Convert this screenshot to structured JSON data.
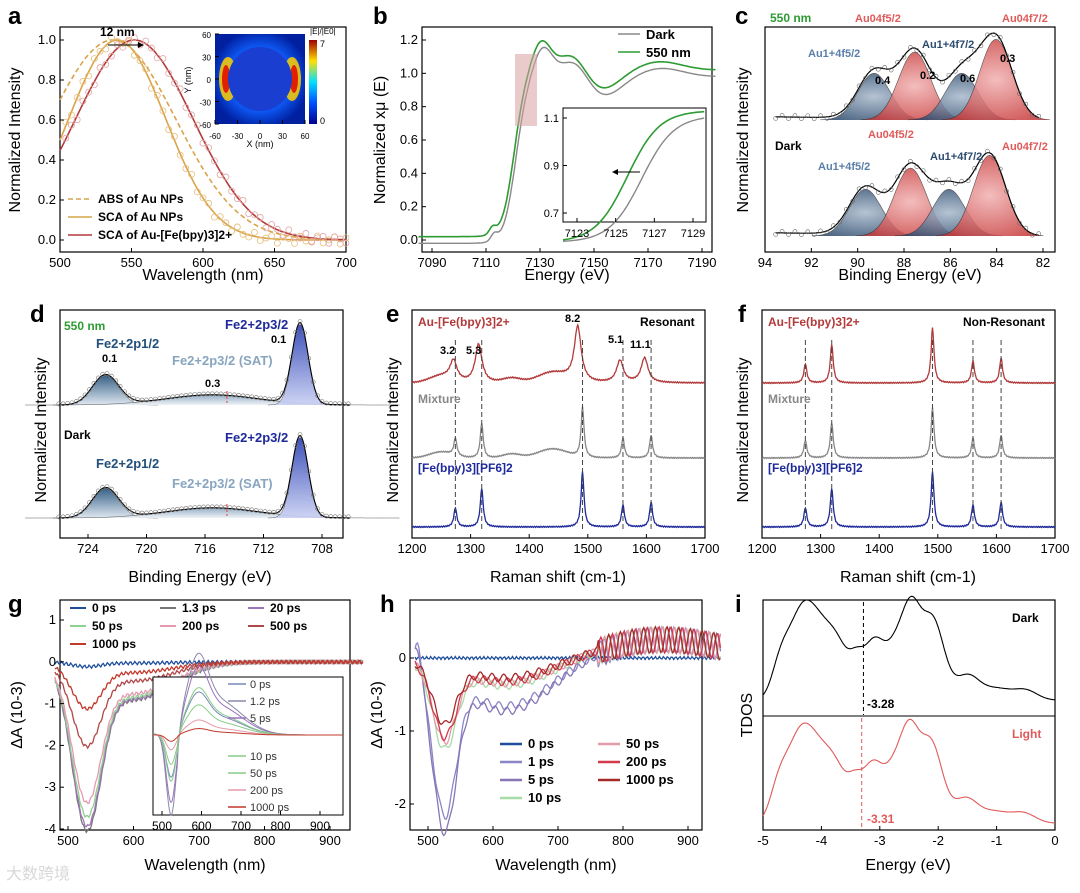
{
  "colors": {
    "red": "#b23a3a",
    "orange": "#d9a34a",
    "green": "#2e9b33",
    "gray": "#888888",
    "blue": "#1f2a9a",
    "navy": "#2d4b6e",
    "lightred": "#e05a5a",
    "steel": "#5b7fa8"
  },
  "watermark": "大数跨境",
  "panels": {
    "a": {
      "label": "a",
      "xlabel": "Wavelength (nm)",
      "ylabel": "Normalized Intensity",
      "xticks": [
        "500",
        "550",
        "600",
        "650",
        "700"
      ],
      "yticks": [
        "0.0",
        "0.2",
        "0.4",
        "0.6",
        "0.8",
        "1.0"
      ],
      "shift_label": "12 nm",
      "legend": [
        "ABS of Au NPs",
        "SCA of Au NPs",
        "SCA of Au-[Fe(bpy)3]2+"
      ],
      "inset": {
        "ylabel": "Y (nm)",
        "xlabel": "X (nm)",
        "ticks": [
          "-60",
          "-30",
          "0",
          "30",
          "60"
        ],
        "cbar_title": "|E|/|E0|",
        "cbar_max": "7",
        "cbar_min": "0"
      }
    },
    "b": {
      "label": "b",
      "xlabel": "Energy (eV)",
      "ylabel": "Normalized xμ (E)",
      "xticks": [
        "7090",
        "7110",
        "7130",
        "7150",
        "7170",
        "7190"
      ],
      "yticks": [
        "0.0",
        "0.2",
        "0.4",
        "0.6",
        "0.8",
        "1.0",
        "1.2"
      ],
      "legend": [
        "Dark",
        "550 nm"
      ],
      "inset": {
        "xticks": [
          "7123",
          "7125",
          "7127",
          "7129"
        ],
        "yticks": [
          "0.7",
          "0.9",
          "1.1"
        ]
      }
    },
    "c": {
      "label": "c",
      "xlabel": "Binding Energy (eV)",
      "ylabel": "Normalized Intensity",
      "xticks": [
        "94",
        "92",
        "90",
        "88",
        "86",
        "84",
        "82"
      ],
      "top_tag": "550 nm",
      "bottom_tag": "Dark",
      "peaks": [
        "Au1+4f5/2",
        "Au04f5/2",
        "Au1+4f7/2",
        "Au04f7/2"
      ],
      "shifts": [
        "0.4",
        "0.2",
        "0.6",
        "0.3"
      ]
    },
    "d": {
      "label": "d",
      "xlabel": "Binding Energy (eV)",
      "ylabel": "Normalized Intensity",
      "xticks": [
        "724",
        "720",
        "716",
        "712",
        "708"
      ],
      "top_tag": "550 nm",
      "bottom_tag": "Dark",
      "peaks": [
        "Fe2+2p1/2",
        "Fe2+2p3/2 (SAT)",
        "Fe2+2p3/2"
      ],
      "shifts": [
        "0.1",
        "0.3",
        "0.1"
      ]
    },
    "e": {
      "label": "e",
      "xlabel": "Raman shift (cm-1)",
      "ylabel": "Normalized Intensity",
      "xticks": [
        "1200",
        "1300",
        "1400",
        "1500",
        "1600",
        "1700"
      ],
      "tag": "Resonant",
      "series": [
        "Au-[Fe(bpy)3]2+",
        "Mixture",
        "[Fe(bpy)3][PF6]2"
      ],
      "shifts": [
        "3.2",
        "5.3",
        "8.2",
        "5.1",
        "11.1"
      ]
    },
    "f": {
      "label": "f",
      "xlabel": "Raman shift (cm-1)",
      "ylabel": "Normalized Intensity",
      "xticks": [
        "1200",
        "1300",
        "1400",
        "1500",
        "1600",
        "1700"
      ],
      "tag": "Non-Resonant",
      "series": [
        "Au-[Fe(bpy)3]2+",
        "Mixture",
        "[Fe(bpy)3][PF6]2"
      ]
    },
    "g": {
      "label": "g",
      "xlabel": "Wavelength (nm)",
      "ylabel": "ΔA (10-3)",
      "xticks": [
        "500",
        "600",
        "700",
        "800",
        "900"
      ],
      "yticks": [
        "1",
        "0",
        "-1",
        "-2",
        "-3",
        "-4"
      ],
      "legend": [
        "0 ps",
        "1.3 ps",
        "20 ps",
        "50 ps",
        "200 ps",
        "500 ps",
        "1000 ps"
      ],
      "inset": {
        "xticks": [
          "500",
          "600",
          "700",
          "800",
          "900"
        ],
        "legend": [
          "0 ps",
          "1.2 ps",
          "5 ps",
          "10 ps",
          "50 ps",
          "200 ps",
          "1000 ps"
        ]
      }
    },
    "h": {
      "label": "h",
      "xlabel": "Wavelength (nm)",
      "ylabel": "ΔA (10-3)",
      "xticks": [
        "500",
        "600",
        "700",
        "800",
        "900"
      ],
      "yticks": [
        "0",
        "-1",
        "-2"
      ],
      "legend": [
        "0 ps",
        "1 ps",
        "5 ps",
        "10 ps",
        "50 ps",
        "200 ps",
        "1000 ps"
      ]
    },
    "i": {
      "label": "i",
      "xlabel": "Energy (eV)",
      "ylabel": "TDOS",
      "xticks": [
        "-5",
        "-4",
        "-3",
        "-2",
        "-1",
        "0"
      ],
      "top_tag": "Dark",
      "bottom_tag": "Light",
      "dark_value": "-3.28",
      "light_value": "-3.31"
    }
  }
}
